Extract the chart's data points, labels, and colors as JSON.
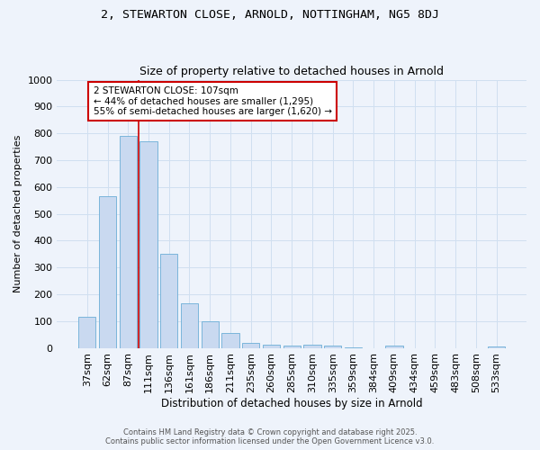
{
  "title1": "2, STEWARTON CLOSE, ARNOLD, NOTTINGHAM, NG5 8DJ",
  "title2": "Size of property relative to detached houses in Arnold",
  "xlabel": "Distribution of detached houses by size in Arnold",
  "ylabel": "Number of detached properties",
  "categories": [
    "37sqm",
    "62sqm",
    "87sqm",
    "111sqm",
    "136sqm",
    "161sqm",
    "186sqm",
    "211sqm",
    "235sqm",
    "260sqm",
    "285sqm",
    "310sqm",
    "335sqm",
    "359sqm",
    "384sqm",
    "409sqm",
    "434sqm",
    "459sqm",
    "483sqm",
    "508sqm",
    "533sqm"
  ],
  "values": [
    115,
    565,
    790,
    770,
    350,
    165,
    100,
    55,
    18,
    13,
    8,
    11,
    7,
    3,
    0,
    10,
    0,
    0,
    0,
    0,
    5
  ],
  "bar_color": "#c9d9f0",
  "bar_edge_color": "#6baed6",
  "background_color": "#eef3fb",
  "grid_color": "#d0dff0",
  "red_line_index": 2.5,
  "annotation_text": "2 STEWARTON CLOSE: 107sqm\n← 44% of detached houses are smaller (1,295)\n55% of semi-detached houses are larger (1,620) →",
  "annotation_box_color": "#ffffff",
  "annotation_box_edge": "#cc0000",
  "footer1": "Contains HM Land Registry data © Crown copyright and database right 2025.",
  "footer2": "Contains public sector information licensed under the Open Government Licence v3.0.",
  "ylim": [
    0,
    1000
  ],
  "yticks": [
    0,
    100,
    200,
    300,
    400,
    500,
    600,
    700,
    800,
    900,
    1000
  ]
}
